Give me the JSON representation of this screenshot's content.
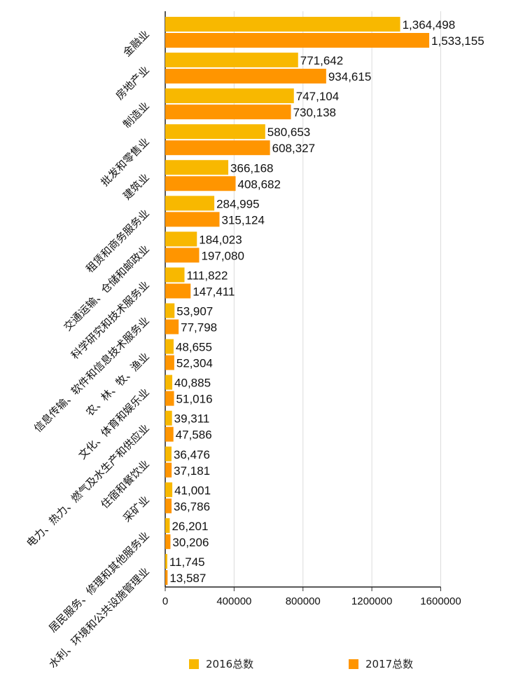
{
  "chart_data": {
    "type": "bar",
    "orientation": "horizontal",
    "categories": [
      "金融业",
      "房地产业",
      "制造业",
      "批发和零售业",
      "建筑业",
      "租赁和商务服务业",
      "交通运输、仓储和邮政业",
      "科学研究和技术服务业",
      "信息传输、软件和信息技术服务业",
      "农、林、牧、渔业",
      "文化、体育和娱乐业",
      "电力、热力、燃气及水生产和供应业",
      "住宿和餐饮业",
      "采矿业",
      "居民服务、修理和其他服务业",
      "水利、环境和公共设施管理业"
    ],
    "series": [
      {
        "name": "2016总数",
        "color": "#F8B800",
        "values": [
          1364498,
          771642,
          747104,
          580653,
          366168,
          284995,
          184023,
          111822,
          53907,
          48655,
          40885,
          39311,
          36476,
          41001,
          26201,
          11745
        ],
        "labels": [
          "1,364,498",
          "771,642",
          "747,104",
          "580,653",
          "366,168",
          "284,995",
          "184,023",
          "111,822",
          "53,907",
          "48,655",
          "40,885",
          "39,311",
          "36,476",
          "41,001",
          "26,201",
          "11,745"
        ]
      },
      {
        "name": "2017总数",
        "color": "#FF9500",
        "values": [
          1533155,
          934615,
          730138,
          608327,
          408682,
          315124,
          197080,
          147411,
          77798,
          52304,
          51016,
          47586,
          37181,
          36786,
          30206,
          13587
        ],
        "labels": [
          "1,533,155",
          "934,615",
          "730,138",
          "608,327",
          "408,682",
          "315,124",
          "197,080",
          "147,411",
          "77,798",
          "52,304",
          "51,016",
          "47,586",
          "37,181",
          "36,786",
          "30,206",
          "13,587"
        ]
      }
    ],
    "xlim": [
      0,
      1600000
    ],
    "xticks": [
      "0",
      "400000",
      "800000",
      "1200000",
      "1600000"
    ],
    "grid": true,
    "legend_position": "bottom",
    "title": "",
    "xlabel": "",
    "ylabel": ""
  }
}
